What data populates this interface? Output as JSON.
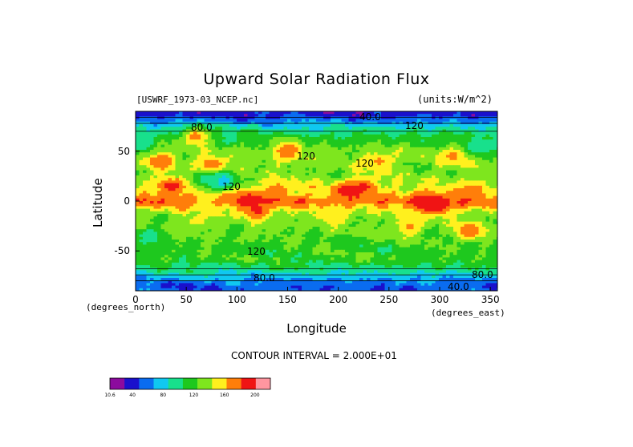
{
  "chart_data": {
    "type": "heatmap",
    "title": "Upward Solar Radiation Flux",
    "source_label": "[USWRF_1973-03_NCEP.nc]",
    "units_label": "(units:W/m^2)",
    "xlabel": "Longitude",
    "ylabel": "Latitude",
    "x_unit_label": "(degrees_east)",
    "y_unit_label": "(degrees_north)",
    "xlim": [
      0,
      357
    ],
    "ylim": [
      -90,
      90
    ],
    "x_ticks": [
      "0",
      "50",
      "100",
      "150",
      "200",
      "250",
      "300",
      "350"
    ],
    "y_ticks": [
      "50",
      "0",
      "-50"
    ],
    "contour_interval_text": "CONTOUR INTERVAL = 2.000E+01",
    "contour_labels": [
      "40.0",
      "80.0",
      "120",
      "120",
      "120",
      "120",
      "120",
      "80.0",
      "40.0",
      "80.0"
    ],
    "zones": [
      {
        "lat": 87,
        "value": 30
      },
      {
        "lat": 80,
        "value": 55
      },
      {
        "lat": 73,
        "value": 85
      },
      {
        "lat": 62,
        "value": 110
      },
      {
        "lat": 52,
        "value": 125
      },
      {
        "lat": 40,
        "value": 130
      },
      {
        "lat": 25,
        "value": 128
      },
      {
        "lat": 10,
        "value": 150
      },
      {
        "lat": 0,
        "value": 175
      },
      {
        "lat": -10,
        "value": 140
      },
      {
        "lat": -20,
        "value": 125
      },
      {
        "lat": -35,
        "value": 122
      },
      {
        "lat": -48,
        "value": 112
      },
      {
        "lat": -58,
        "value": 115
      },
      {
        "lat": -65,
        "value": 100
      },
      {
        "lat": -72,
        "value": 82
      },
      {
        "lat": -79,
        "value": 60
      },
      {
        "lat": -86,
        "value": 45
      }
    ],
    "features": [
      {
        "lon": 35,
        "lat": 15,
        "value": 190
      },
      {
        "lon": 25,
        "lat": 40,
        "value": 180
      },
      {
        "lon": 75,
        "lat": 35,
        "value": 185
      },
      {
        "lon": 85,
        "lat": 20,
        "value": 60
      },
      {
        "lon": 70,
        "lat": 22,
        "value": 90
      },
      {
        "lon": 110,
        "lat": 0,
        "value": 190
      },
      {
        "lon": 120,
        "lat": -10,
        "value": 185
      },
      {
        "lon": 140,
        "lat": 10,
        "value": 175
      },
      {
        "lon": 150,
        "lat": 50,
        "value": 180
      },
      {
        "lon": 210,
        "lat": 10,
        "value": 190
      },
      {
        "lon": 225,
        "lat": 15,
        "value": 185
      },
      {
        "lon": 285,
        "lat": -2,
        "value": 200
      },
      {
        "lon": 300,
        "lat": -5,
        "value": 195
      },
      {
        "lon": 270,
        "lat": -25,
        "value": 165
      },
      {
        "lon": 330,
        "lat": -30,
        "value": 180
      },
      {
        "lon": 330,
        "lat": 8,
        "value": 180
      },
      {
        "lon": 315,
        "lat": 45,
        "value": 165
      },
      {
        "lon": 195,
        "lat": -15,
        "value": 160
      },
      {
        "lon": 60,
        "lat": -20,
        "value": 145
      },
      {
        "lon": 240,
        "lat": 40,
        "value": 165
      },
      {
        "lon": 15,
        "lat": -35,
        "value": 90
      },
      {
        "lon": 340,
        "lat": 55,
        "value": 80
      },
      {
        "lon": 5,
        "lat": 60,
        "value": 80
      },
      {
        "lon": 60,
        "lat": 65,
        "value": 170
      }
    ],
    "colorbar": {
      "levels": [
        "10.6",
        "40",
        "80",
        "120",
        "160",
        "200"
      ],
      "colors": [
        "#8c0b9e",
        "#1a10cc",
        "#0a6cf0",
        "#10c8f0",
        "#18e08c",
        "#1ec81e",
        "#7ee61e",
        "#fff01e",
        "#ff7e0a",
        "#f01414",
        "#ff96a0"
      ]
    }
  }
}
